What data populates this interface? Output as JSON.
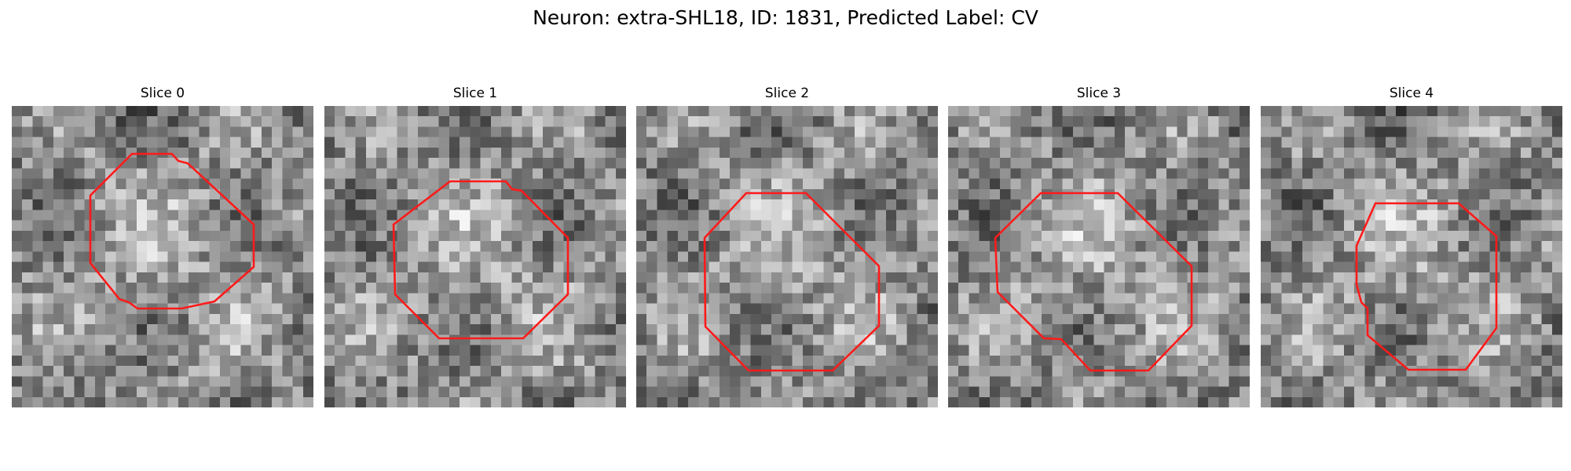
{
  "figure": {
    "title": "Neuron: extra-SHL18, ID: 1831, Predicted Label: CV"
  },
  "colors": {
    "outline": "#ff1a1a",
    "colormap": "gray"
  },
  "panels": [
    {
      "title": "Slice 0",
      "contour": [
        [
          153,
          61
        ],
        [
          204,
          61
        ],
        [
          212,
          70
        ],
        [
          224,
          73
        ],
        [
          308,
          151
        ],
        [
          308,
          205
        ],
        [
          258,
          249
        ],
        [
          216,
          258
        ],
        [
          160,
          258
        ],
        [
          149,
          250
        ],
        [
          137,
          246
        ],
        [
          100,
          200
        ],
        [
          100,
          114
        ]
      ]
    },
    {
      "title": "Slice 1",
      "contour": [
        [
          160,
          96
        ],
        [
          231,
          96
        ],
        [
          239,
          106
        ],
        [
          251,
          108
        ],
        [
          310,
          168
        ],
        [
          310,
          240
        ],
        [
          253,
          296
        ],
        [
          146,
          296
        ],
        [
          90,
          240
        ],
        [
          88,
          151
        ]
      ]
    },
    {
      "title": "Slice 2",
      "contour": [
        [
          140,
          111
        ],
        [
          216,
          111
        ],
        [
          309,
          204
        ],
        [
          309,
          280
        ],
        [
          250,
          337
        ],
        [
          143,
          337
        ],
        [
          88,
          281
        ],
        [
          87,
          168
        ]
      ]
    },
    {
      "title": "Slice 3",
      "contour": [
        [
          118,
          111
        ],
        [
          216,
          111
        ],
        [
          310,
          204
        ],
        [
          310,
          280
        ],
        [
          255,
          337
        ],
        [
          181,
          337
        ],
        [
          144,
          297
        ],
        [
          122,
          296
        ],
        [
          63,
          237
        ],
        [
          60,
          168
        ]
      ]
    },
    {
      "title": "Slice 4",
      "contour": [
        [
          146,
          124
        ],
        [
          252,
          124
        ],
        [
          300,
          166
        ],
        [
          300,
          283
        ],
        [
          261,
          336
        ],
        [
          188,
          336
        ],
        [
          136,
          292
        ],
        [
          136,
          258
        ],
        [
          128,
          250
        ],
        [
          122,
          227
        ],
        [
          122,
          178
        ]
      ]
    }
  ]
}
